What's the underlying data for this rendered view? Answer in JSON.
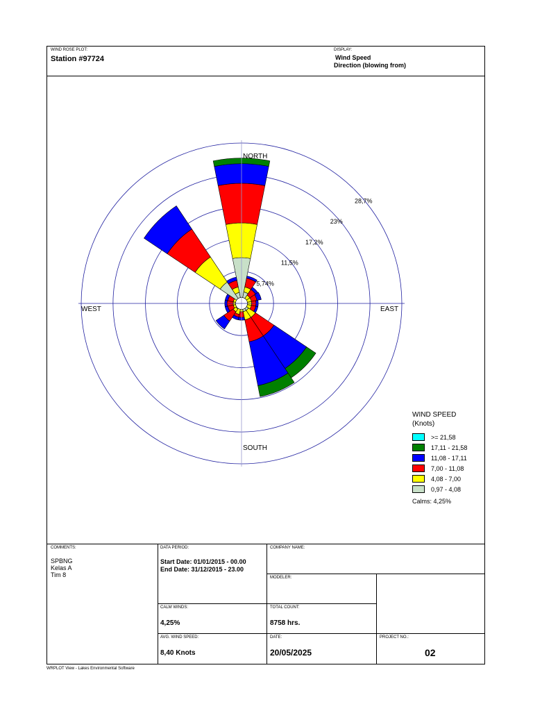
{
  "header": {
    "plot_label": "WIND ROSE PLOT:",
    "station": "Station #97724",
    "display_label": "DISPLAY:",
    "display_value": "Wind Speed",
    "display_sub": "Direction (blowing from)"
  },
  "chart_data": {
    "type": "wind-rose",
    "direction_labels": [
      "NORTH",
      "EAST",
      "SOUTH",
      "WEST"
    ],
    "ring_labels": [
      "5,74%",
      "11,5%",
      "17,2%",
      "23%",
      "28,7%"
    ],
    "ring_values": [
      5.74,
      11.5,
      17.2,
      23,
      28.7
    ],
    "legend_title": "WIND SPEED",
    "legend_unit": "(Knots)",
    "bins": [
      "0,97 - 4,08",
      "4,08 - 7,00",
      "7,00 - 11,08",
      "11,08 - 17,11",
      "17,11 - 21,58",
      ">= 21,58"
    ],
    "bin_colors": [
      "#c8e0c8",
      "#ffff00",
      "#ff0000",
      "#0000ff",
      "#008000",
      "#00ffff"
    ],
    "legend_order": [
      5,
      4,
      3,
      2,
      1,
      0
    ],
    "calms": "Calms: 4,25%",
    "sectors": [
      {
        "dir": 0,
        "values": [
          8.2,
          14.4,
          21.5,
          25.0,
          26.0,
          0
        ]
      },
      {
        "dir": 22.5,
        "values": [
          2.1,
          3.0,
          4.6,
          5.0,
          5.0,
          0
        ]
      },
      {
        "dir": 45,
        "values": [
          1.0,
          1.8,
          3.0,
          3.5,
          3.5,
          0
        ]
      },
      {
        "dir": 67.5,
        "values": [
          1.0,
          1.8,
          2.8,
          3.6,
          3.6,
          0
        ]
      },
      {
        "dir": 90,
        "values": [
          1.0,
          1.8,
          2.6,
          3.0,
          3.0,
          0
        ]
      },
      {
        "dir": 112.5,
        "values": [
          1.0,
          1.8,
          2.6,
          3.0,
          3.0,
          0
        ]
      },
      {
        "dir": 135,
        "values": [
          1.5,
          3.0,
          7.0,
          14.0,
          16.0,
          0
        ]
      },
      {
        "dir": 157.5,
        "values": [
          1.5,
          3.0,
          7.0,
          15.0,
          17.0,
          0
        ]
      },
      {
        "dir": 180,
        "values": [
          1.0,
          1.5,
          2.5,
          3.0,
          3.0,
          0
        ]
      },
      {
        "dir": 202.5,
        "values": [
          1.0,
          2.0,
          2.5,
          3.0,
          3.0,
          0
        ]
      },
      {
        "dir": 225,
        "values": [
          1.2,
          1.8,
          3.8,
          5.5,
          5.5,
          0
        ]
      },
      {
        "dir": 247.5,
        "values": [
          1.0,
          1.5,
          2.5,
          3.0,
          3.0,
          0
        ]
      },
      {
        "dir": 270,
        "values": [
          1.0,
          1.5,
          2.6,
          3.0,
          3.0,
          0
        ]
      },
      {
        "dir": 292.5,
        "values": [
          1.0,
          1.5,
          2.5,
          3.0,
          3.0,
          0
        ]
      },
      {
        "dir": 315,
        "values": [
          4.6,
          10.0,
          16.0,
          21.0,
          21.0,
          0
        ]
      },
      {
        "dir": 337.5,
        "values": [
          2.0,
          3.0,
          4.2,
          4.8,
          4.8,
          0
        ]
      }
    ]
  },
  "footer": {
    "comments_label": "COMMENTS:",
    "comments": [
      "SPBNG",
      "Kelas A",
      "Tim 8"
    ],
    "data_period_label": "DATA PERIOD:",
    "start_date": "Start Date: 01/01/2015 - 00.00",
    "end_date": "End Date: 31/12/2015 - 23.00",
    "company_label": "COMPANY NAME:",
    "modeler_label": "MODELER:",
    "calm_label": "CALM WINDS:",
    "calm_value": "4,25%",
    "total_label": "TOTAL COUNT:",
    "total_value": "8758 hrs.",
    "avg_label": "AVG. WIND SPEED:",
    "avg_value": "8,40 Knots",
    "date_label": "DATE:",
    "date_value": "20/05/2025",
    "project_label": "PROJECT NO.:",
    "project_value": "02",
    "software": "WRPLOT View - Lakes Environmental Software"
  }
}
